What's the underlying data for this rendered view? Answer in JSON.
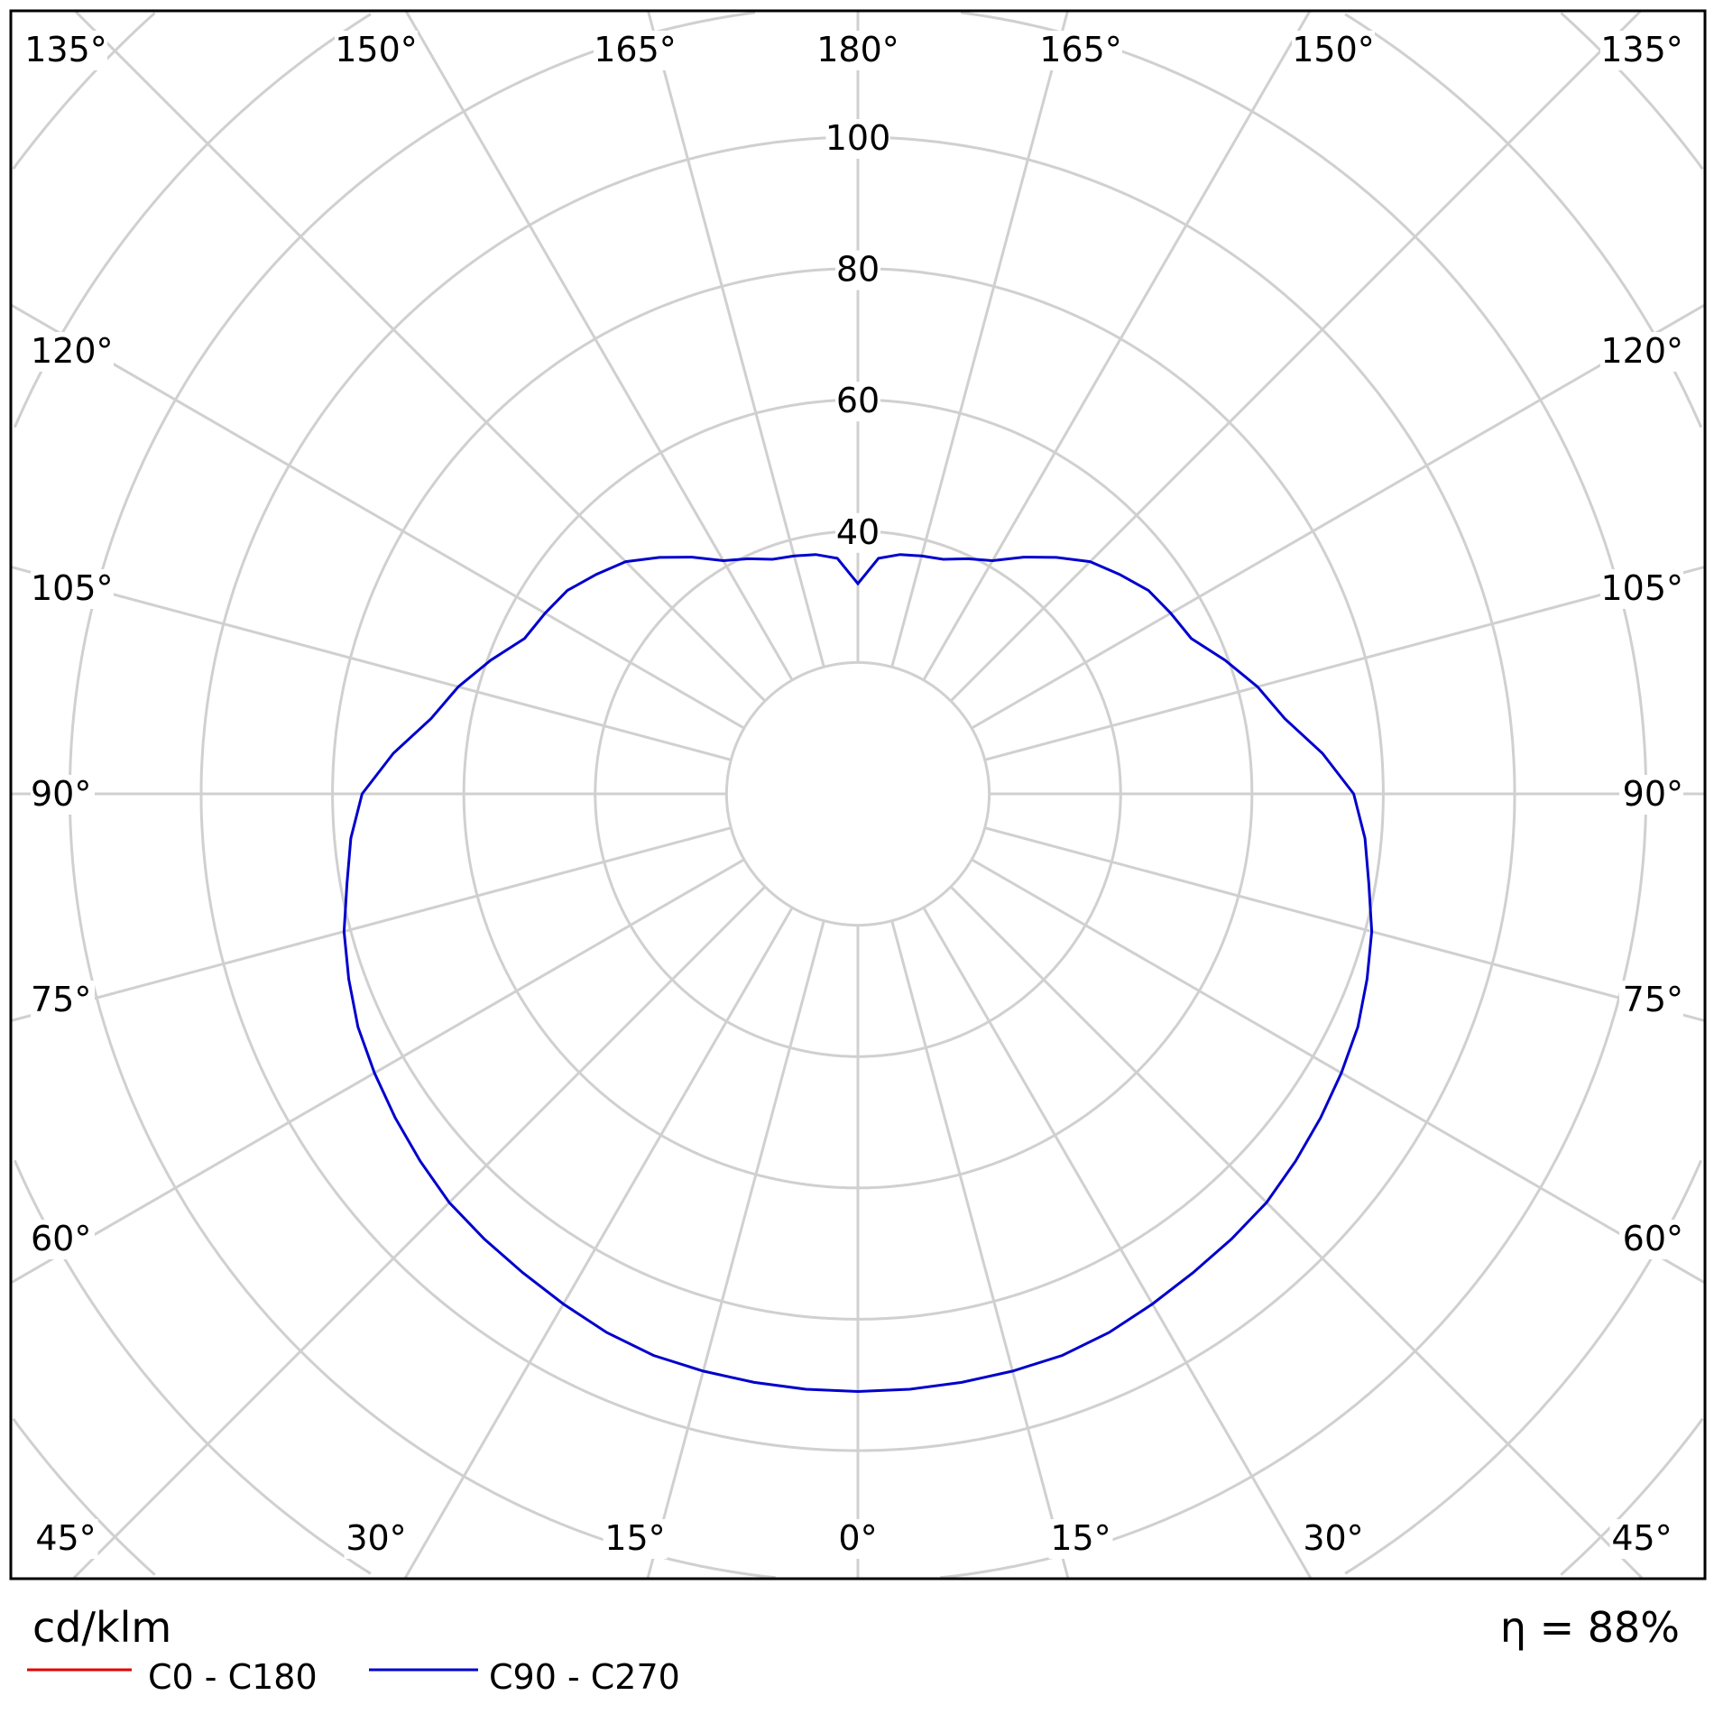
{
  "chart_data": {
    "type": "polar",
    "unit_label": "cd/klm",
    "efficiency_label": "η = 88%",
    "radial_ticks": [
      40,
      60,
      80,
      100
    ],
    "radial_rings": [
      20,
      40,
      60,
      80,
      100,
      120,
      140,
      160
    ],
    "angle_step_deg": 15,
    "angle_labels": {
      "top": [
        "135°",
        "150°",
        "165°",
        "180°",
        "165°",
        "150°",
        "135°"
      ],
      "left": [
        "120°",
        "105°",
        "90°",
        "75°",
        "60°"
      ],
      "right": [
        "120°",
        "105°",
        "90°",
        "75°",
        "60°"
      ],
      "bottom": [
        "45°",
        "30°",
        "15°",
        "0°",
        "15°",
        "30°",
        "45°"
      ]
    },
    "grid": true,
    "legend_placement": "bottom-left",
    "series": [
      {
        "name": "C0 - C180",
        "color": "#e00000",
        "angles": [],
        "values": []
      },
      {
        "name": "C90 - C270",
        "color": "#0000cc",
        "angles": [
          0,
          5,
          10,
          15,
          20,
          25,
          30,
          35,
          40,
          45,
          50,
          55,
          60,
          65,
          70,
          75,
          80,
          85,
          90,
          95,
          100,
          105,
          110,
          115,
          120,
          125,
          130,
          135,
          140,
          145,
          150,
          155,
          160,
          165,
          170,
          175,
          180
        ],
        "values": [
          91,
          91,
          91,
          91,
          91,
          90.5,
          89.7,
          89,
          88.5,
          88,
          87,
          86,
          85,
          84,
          82.5,
          81,
          79,
          77.5,
          75.5,
          71,
          66,
          63,
          59.5,
          56,
          55,
          54,
          52,
          50,
          47,
          44,
          41,
          39.5,
          38,
          37.5,
          37,
          36,
          32
        ]
      }
    ]
  }
}
